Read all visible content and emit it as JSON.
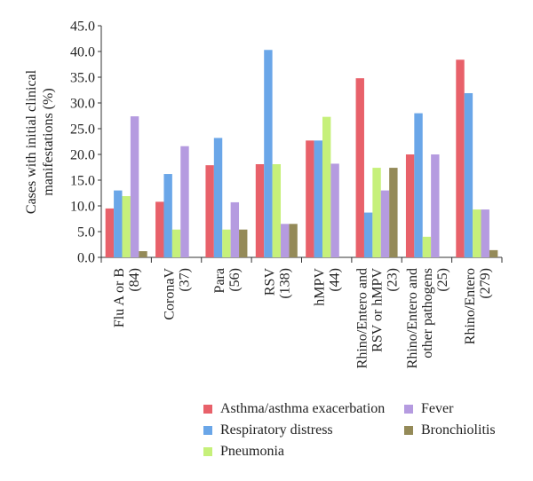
{
  "chart_data": {
    "type": "bar",
    "ylabel": "Cases with initial clinical manifestations (%)",
    "ylim": [
      0,
      45
    ],
    "yticks": [
      "0.0",
      "5.0",
      "10.0",
      "15.0",
      "20.0",
      "25.0",
      "30.0",
      "35.0",
      "40.0",
      "45.0"
    ],
    "categories": [
      "Flu A or B (84)",
      "CoronaV (37)",
      "Para (56)",
      "RSV (138)",
      "hMPV (44)",
      "Rhino/Entero and RSV or hMPV (23)",
      "Rhino/Entero and other pathogens (25)",
      "Rhino/Entero (279)"
    ],
    "category_lines": [
      [
        "Flu A or B",
        "(84)"
      ],
      [
        "CoronaV",
        "(37)"
      ],
      [
        "Para",
        "(56)"
      ],
      [
        "RSV",
        "(138)"
      ],
      [
        "hMPV",
        "(44)"
      ],
      [
        "Rhino/Entero and",
        "RSV or hMPV",
        "(23)"
      ],
      [
        "Rhino/Entero and",
        "other pathogens",
        "(25)"
      ],
      [
        "Rhino/Entero",
        "(279)"
      ]
    ],
    "series": [
      {
        "name": "Asthma/asthma exacerbation",
        "color": "#e8616a",
        "values": [
          9.5,
          10.8,
          17.9,
          18.1,
          22.7,
          34.8,
          20.0,
          38.4
        ]
      },
      {
        "name": "Respiratory distress",
        "color": "#6aa6e8",
        "values": [
          13.0,
          16.2,
          23.2,
          40.3,
          22.7,
          8.7,
          28.0,
          31.9
        ]
      },
      {
        "name": "Pneumonia",
        "color": "#c6f07a",
        "values": [
          11.9,
          5.4,
          5.4,
          18.1,
          27.3,
          17.4,
          4.0,
          9.3
        ]
      },
      {
        "name": "Fever",
        "color": "#b59be0",
        "values": [
          27.4,
          21.6,
          10.7,
          6.5,
          18.2,
          13.0,
          20.0,
          9.3
        ]
      },
      {
        "name": "Bronchiolitis",
        "color": "#948a58",
        "values": [
          1.2,
          0.0,
          5.4,
          6.5,
          0.0,
          17.4,
          0.0,
          1.4
        ]
      }
    ],
    "legend": {
      "position": "bottom",
      "items": [
        {
          "label": "Asthma/asthma exacerbation",
          "color": "#e8616a"
        },
        {
          "label": "Fever",
          "color": "#b59be0"
        },
        {
          "label": "Respiratory distress",
          "color": "#6aa6e8"
        },
        {
          "label": "Bronchiolitis",
          "color": "#948a58"
        },
        {
          "label": "Pneumonia",
          "color": "#c6f07a"
        }
      ]
    },
    "grid": false
  }
}
